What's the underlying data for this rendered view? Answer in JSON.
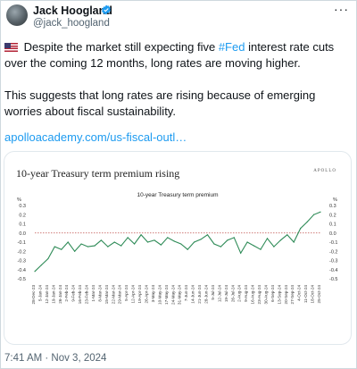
{
  "tweet": {
    "author_name": "Jack Hoogland",
    "handle": "@jack_hoogland",
    "text_line1_before": " Despite the market still expecting five ",
    "hashtag": "#Fed",
    "text_line1_after": " interest rate cuts over the coming 12 months, long rates are moving higher.",
    "text_p2": "This suggests that long rates are rising because of emerging worries about fiscal sustainability.",
    "link": "apolloacademy.com/us-fiscal-outl…",
    "timestamp": "7:41 AM · Nov 3, 2024",
    "more_icon": "more-dots-icon",
    "verified_icon": "verified-badge-icon",
    "flag_icon": "us-flag-icon"
  },
  "card": {
    "headline": "10-year Treasury term premium rising",
    "brand": "APOLLO"
  },
  "colors": {
    "link": "#1d9bf0",
    "line": "#2e8b57",
    "zero_line": "#c0504d"
  },
  "chart_data": {
    "type": "line",
    "title": "10-year Treasury term premium",
    "ylabel_left": "%",
    "ylabel_right": "%",
    "ylim": [
      -0.5,
      0.3
    ],
    "yticks": [
      0.3,
      0.2,
      0.1,
      0.0,
      -0.1,
      -0.2,
      -0.3,
      -0.4,
      -0.5
    ],
    "ytick_labels": [
      "0.3",
      "0.2",
      "0.1",
      "0.0",
      "-0.1",
      "-0.2",
      "-0.3",
      "-0.4",
      "-0.5"
    ],
    "categories": [
      "28-Dec-23",
      "5-Jan-24",
      "12-Jan-24",
      "19-Jan-24",
      "26-Jan-24",
      "2-Feb-24",
      "9-Feb-24",
      "16-Feb-24",
      "23-Feb-24",
      "1-Mar-24",
      "8-Mar-24",
      "15-Mar-24",
      "22-Mar-24",
      "29-Mar-24",
      "5-Apr-24",
      "12-Apr-24",
      "19-Apr-24",
      "26-Apr-24",
      "3-May-24",
      "10-May-24",
      "17-May-24",
      "24-May-24",
      "31-May-24",
      "7-Jun-24",
      "14-Jun-24",
      "21-Jun-24",
      "28-Jun-24",
      "5-Jul-24",
      "12-Jul-24",
      "19-Jul-24",
      "26-Jul-24",
      "2-Aug-24",
      "9-Aug-24",
      "16-Aug-24",
      "23-Aug-24",
      "30-Aug-24",
      "6-Sep-24",
      "13-Sep-24",
      "20-Sep-24",
      "27-Sep-24",
      "4-Oct-24",
      "11-Oct-24",
      "18-Oct-24",
      "25-Oct-24"
    ],
    "xtick_labels": [
      "28-Dec-23",
      "5-Jan-24",
      "12-Jan-24",
      "19-Jan-24",
      "26-Jan-24",
      "2-Feb-24",
      "9-Feb-24",
      "16-Feb-24",
      "23-Feb-24",
      "1-Mar-24",
      "8-Mar-24",
      "15-Mar-24",
      "22-Mar-24",
      "29-Mar-24",
      "5-Apr-24",
      "12-Apr-24",
      "19-Apr-24",
      "26-Apr-24",
      "3-May-24",
      "10-May-24",
      "17-May-24",
      "24-May-24",
      "31-May-24",
      "7-Jun-24",
      "14-Jun-24",
      "21-Jun-24",
      "28-Jun-24",
      "5-Jul-24",
      "12-Jul-24",
      "19-Jul-24",
      "26-Jul-24",
      "2-Aug-24",
      "9-Aug-24",
      "16-Aug-24",
      "23-Aug-24",
      "30-Aug-24",
      "6-Sep-24",
      "13-Sep-24",
      "20-Sep-24",
      "27-Sep-24",
      "4-Oct-24",
      "11-Oct-24",
      "18-Oct-24",
      "25-Oct-24"
    ],
    "values": [
      -0.42,
      -0.35,
      -0.28,
      -0.15,
      -0.18,
      -0.1,
      -0.2,
      -0.12,
      -0.15,
      -0.14,
      -0.08,
      -0.15,
      -0.1,
      -0.14,
      -0.05,
      -0.12,
      -0.02,
      -0.1,
      -0.08,
      -0.13,
      -0.05,
      -0.09,
      -0.12,
      -0.18,
      -0.1,
      -0.07,
      -0.02,
      -0.12,
      -0.15,
      -0.08,
      -0.05,
      -0.22,
      -0.1,
      -0.14,
      -0.18,
      -0.06,
      -0.15,
      -0.08,
      -0.02,
      -0.1,
      0.05,
      0.12,
      0.2,
      0.23
    ],
    "zero_line": true,
    "grid": false
  }
}
